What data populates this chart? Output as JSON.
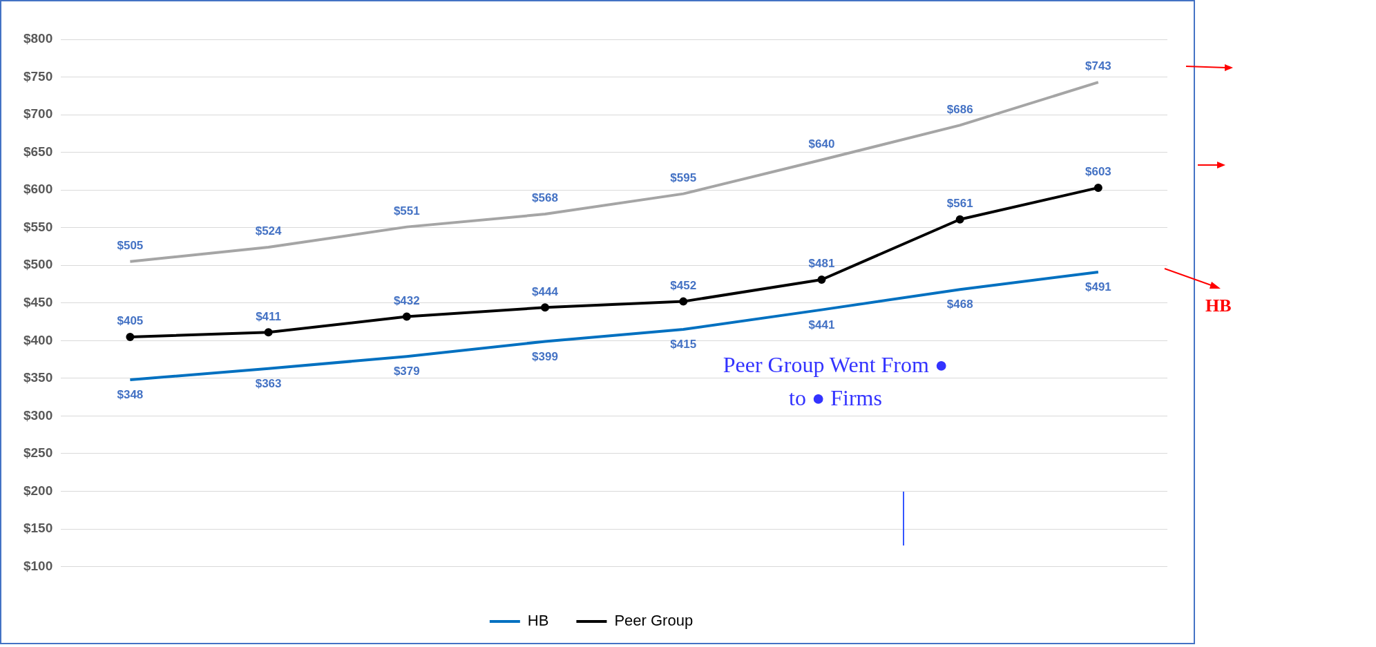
{
  "chart_data": {
    "type": "line",
    "categories": [
      null,
      null,
      null,
      null,
      null,
      null,
      null,
      null
    ],
    "series": [
      {
        "name": "HB",
        "color": "#0070c0",
        "marker": "none",
        "values": [
          348,
          363,
          379,
          399,
          415,
          441,
          468,
          491
        ],
        "value_labels": [
          "$348",
          "$363",
          "$379",
          "$399",
          "$415",
          "$441",
          "$468",
          "$491"
        ]
      },
      {
        "name": "Peer Group",
        "color": "#000000",
        "marker": "circle",
        "values": [
          405,
          411,
          432,
          444,
          452,
          481,
          561,
          603
        ],
        "value_labels": [
          "$405",
          "$411",
          "$432",
          "$444",
          "$452",
          "$481",
          "$561",
          "$603"
        ]
      },
      {
        "color": "#a5a5a5",
        "marker": "none",
        "values": [
          505,
          524,
          551,
          568,
          595,
          640,
          686,
          743
        ],
        "value_labels": [
          "$505",
          "$524",
          "$551",
          "$568",
          "$595",
          "$640",
          "$686",
          "$743"
        ]
      }
    ],
    "ylim": [
      100,
      800
    ],
    "yticks": [
      {
        "value": 100,
        "label": "$100"
      },
      {
        "value": 150,
        "label": "$150"
      },
      {
        "value": 200,
        "label": "$200"
      },
      {
        "value": 250,
        "label": "$250"
      },
      {
        "value": 300,
        "label": "$300"
      },
      {
        "value": 350,
        "label": "$350"
      },
      {
        "value": 400,
        "label": "$400"
      },
      {
        "value": 450,
        "label": "$450"
      },
      {
        "value": 500,
        "label": "$500"
      },
      {
        "value": 550,
        "label": "$550"
      },
      {
        "value": 600,
        "label": "$600"
      },
      {
        "value": 650,
        "label": "$650"
      },
      {
        "value": 700,
        "label": "$700"
      },
      {
        "value": 750,
        "label": "$750"
      },
      {
        "value": 800,
        "label": "$800"
      }
    ],
    "grid": "y",
    "legend": "bottom",
    "annotations": [
      "Peer Group Went From ● to ● Firms",
      "HB"
    ]
  }
}
